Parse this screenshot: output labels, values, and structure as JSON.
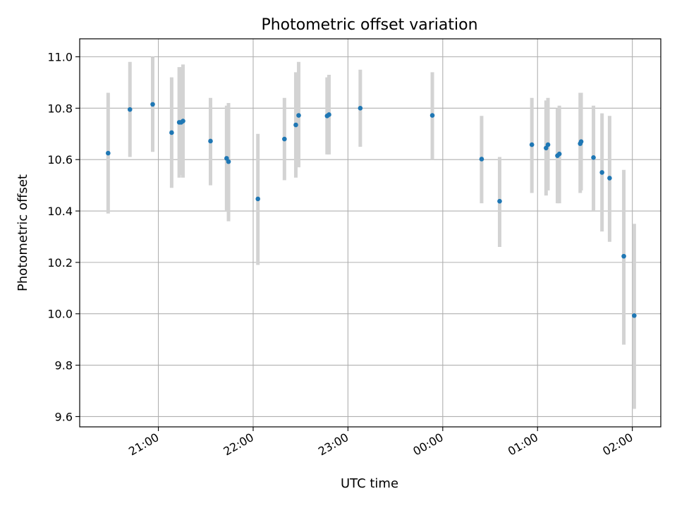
{
  "chart_data": {
    "type": "scatter",
    "title": "Photometric offset variation",
    "xlabel": "UTC time",
    "ylabel": "Photometric offset",
    "grid": true,
    "xlim": [
      20.17,
      26.3
    ],
    "ylim": [
      9.56,
      11.07
    ],
    "x_ticks": [
      {
        "v": 21,
        "label": "21:00"
      },
      {
        "v": 22,
        "label": "22:00"
      },
      {
        "v": 23,
        "label": "23:00"
      },
      {
        "v": 24,
        "label": "00:00"
      },
      {
        "v": 25,
        "label": "01:00"
      },
      {
        "v": 26,
        "label": "02:00"
      }
    ],
    "y_ticks": [
      {
        "v": 9.6,
        "label": "9.6"
      },
      {
        "v": 9.8,
        "label": "9.8"
      },
      {
        "v": 10.0,
        "label": "10.0"
      },
      {
        "v": 10.2,
        "label": "10.2"
      },
      {
        "v": 10.4,
        "label": "10.4"
      },
      {
        "v": 10.6,
        "label": "10.6"
      },
      {
        "v": 10.8,
        "label": "10.8"
      },
      {
        "v": 11.0,
        "label": "11.0"
      }
    ],
    "colors": {
      "marker": "#1f77b4",
      "errorbar": "#d3d3d3",
      "grid": "#b0b0b0"
    },
    "points": [
      {
        "t": 20.47,
        "y": 10.625,
        "lo": 10.39,
        "hi": 10.86
      },
      {
        "t": 20.7,
        "y": 10.795,
        "lo": 10.61,
        "hi": 10.98
      },
      {
        "t": 20.94,
        "y": 10.815,
        "lo": 10.63,
        "hi": 11.0
      },
      {
        "t": 21.14,
        "y": 10.705,
        "lo": 10.49,
        "hi": 10.92
      },
      {
        "t": 21.22,
        "y": 10.745,
        "lo": 10.53,
        "hi": 10.96
      },
      {
        "t": 21.24,
        "y": 10.745,
        "lo": 10.54,
        "hi": 10.96
      },
      {
        "t": 21.26,
        "y": 10.75,
        "lo": 10.53,
        "hi": 10.97
      },
      {
        "t": 21.55,
        "y": 10.672,
        "lo": 10.5,
        "hi": 10.84
      },
      {
        "t": 21.72,
        "y": 10.605,
        "lo": 10.4,
        "hi": 10.81
      },
      {
        "t": 21.74,
        "y": 10.592,
        "lo": 10.36,
        "hi": 10.82
      },
      {
        "t": 22.05,
        "y": 10.447,
        "lo": 10.19,
        "hi": 10.7
      },
      {
        "t": 22.33,
        "y": 10.68,
        "lo": 10.52,
        "hi": 10.84
      },
      {
        "t": 22.45,
        "y": 10.735,
        "lo": 10.53,
        "hi": 10.94
      },
      {
        "t": 22.48,
        "y": 10.772,
        "lo": 10.57,
        "hi": 10.98
      },
      {
        "t": 22.78,
        "y": 10.77,
        "lo": 10.62,
        "hi": 10.92
      },
      {
        "t": 22.8,
        "y": 10.775,
        "lo": 10.62,
        "hi": 10.93
      },
      {
        "t": 23.13,
        "y": 10.8,
        "lo": 10.65,
        "hi": 10.95
      },
      {
        "t": 23.89,
        "y": 10.772,
        "lo": 10.6,
        "hi": 10.94
      },
      {
        "t": 24.41,
        "y": 10.602,
        "lo": 10.43,
        "hi": 10.77
      },
      {
        "t": 24.6,
        "y": 10.438,
        "lo": 10.26,
        "hi": 10.61
      },
      {
        "t": 24.94,
        "y": 10.658,
        "lo": 10.47,
        "hi": 10.84
      },
      {
        "t": 25.09,
        "y": 10.645,
        "lo": 10.46,
        "hi": 10.83
      },
      {
        "t": 25.11,
        "y": 10.658,
        "lo": 10.48,
        "hi": 10.84
      },
      {
        "t": 25.21,
        "y": 10.615,
        "lo": 10.43,
        "hi": 10.8
      },
      {
        "t": 25.23,
        "y": 10.622,
        "lo": 10.43,
        "hi": 10.81
      },
      {
        "t": 25.45,
        "y": 10.662,
        "lo": 10.47,
        "hi": 10.86
      },
      {
        "t": 25.46,
        "y": 10.67,
        "lo": 10.48,
        "hi": 10.86
      },
      {
        "t": 25.59,
        "y": 10.608,
        "lo": 10.4,
        "hi": 10.81
      },
      {
        "t": 25.68,
        "y": 10.55,
        "lo": 10.32,
        "hi": 10.78
      },
      {
        "t": 25.76,
        "y": 10.528,
        "lo": 10.28,
        "hi": 10.77
      },
      {
        "t": 25.91,
        "y": 10.224,
        "lo": 9.88,
        "hi": 10.56
      },
      {
        "t": 26.02,
        "y": 9.993,
        "lo": 9.63,
        "hi": 10.35
      }
    ]
  }
}
